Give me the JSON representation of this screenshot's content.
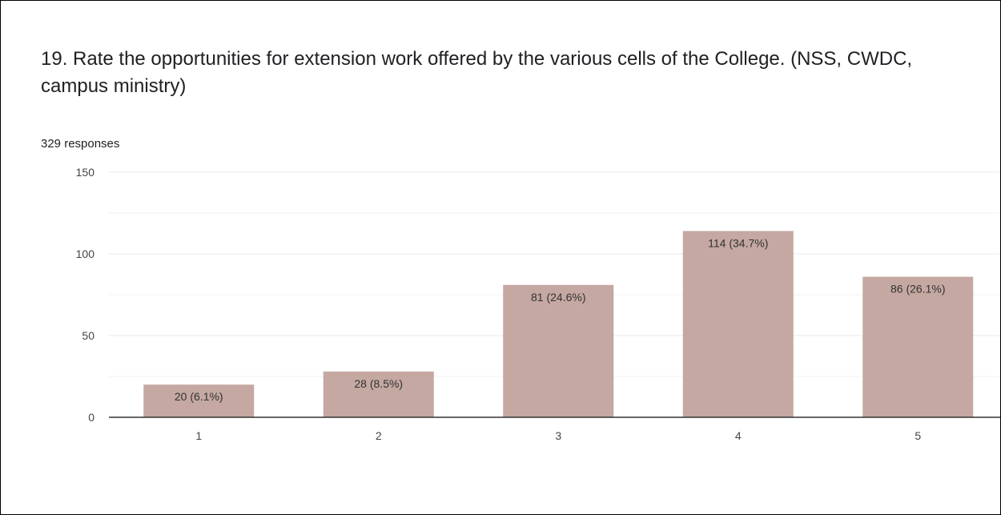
{
  "question": {
    "title": "19. Rate the opportunities for extension work offered by the various  cells of the College. (NSS, CWDC, campus ministry)",
    "responses": "329 responses"
  },
  "colors": {
    "bar": "#c4a8a1",
    "grid": "#eeeeee",
    "axis": "#333333"
  },
  "chart_data": {
    "type": "bar",
    "categories": [
      "1",
      "2",
      "3",
      "4",
      "5"
    ],
    "values": [
      20,
      28,
      81,
      114,
      86
    ],
    "data_labels": [
      "20 (6.1%)",
      "28 (8.5%)",
      "81 (24.6%)",
      "114 (34.7%)",
      "86 (26.1%)"
    ],
    "ylim": [
      0,
      150
    ],
    "yticks": [
      "0",
      "50",
      "100",
      "150"
    ],
    "grid": true,
    "legend": "none"
  }
}
